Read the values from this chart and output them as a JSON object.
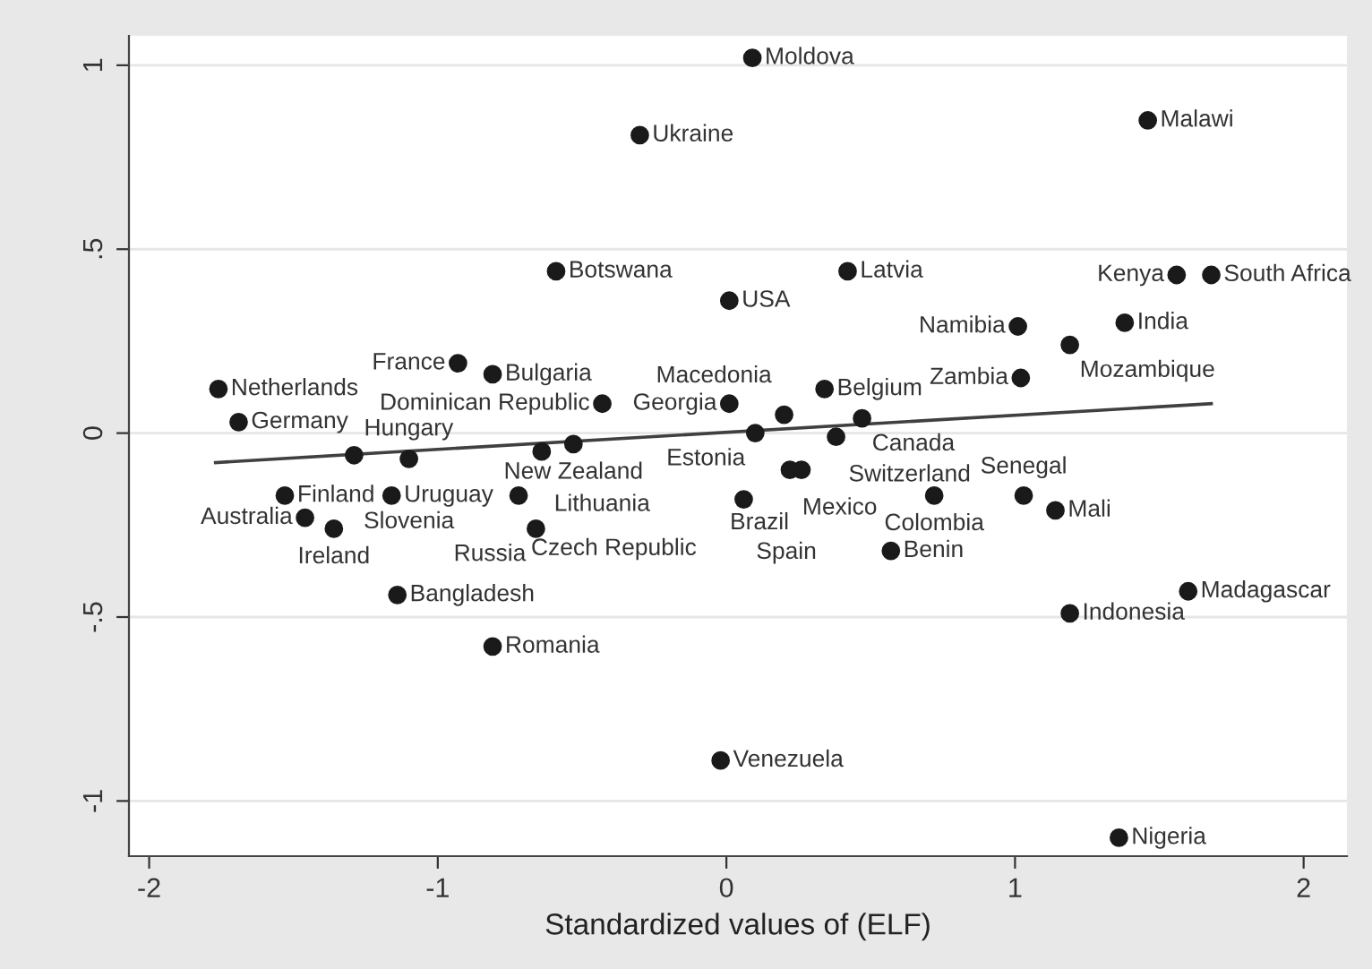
{
  "chart_data": {
    "type": "scatter",
    "xlabel": "Standardized values of (ELF)",
    "xlim": [
      -2.07,
      2.15
    ],
    "ylim": [
      -1.15,
      1.08
    ],
    "xticks": [
      {
        "value": -2,
        "label": "-2"
      },
      {
        "value": -1,
        "label": "-1"
      },
      0,
      1,
      2
    ],
    "yticks": [
      {
        "value": -1,
        "label": "-1"
      },
      {
        "value": -0.5,
        "label": "-.5"
      },
      0,
      {
        "value": 0.5,
        "label": ".5"
      },
      1
    ],
    "grid": "y",
    "series": [
      {
        "marker": "circle",
        "color": "#1a1a1a",
        "x": [
          0.09,
          -0.3,
          1.46,
          -0.59,
          0.01,
          0.42,
          1.56,
          1.68,
          1.38,
          1.01,
          1.19,
          1.02,
          -0.93,
          -0.81,
          -1.76,
          -1.69,
          -0.43,
          0.01,
          0.2,
          0.34,
          0.47,
          0.1,
          0.38,
          0.22,
          0.26,
          0.06,
          -0.53,
          -0.64,
          -1.29,
          -1.1,
          -1.53,
          -1.16,
          -0.72,
          -1.46,
          -1.36,
          -0.66,
          0.72,
          1.03,
          1.14,
          0.57,
          1.6,
          1.19,
          -1.14,
          -0.81,
          -0.02,
          1.36
        ],
        "values": [
          1.02,
          0.81,
          0.85,
          0.44,
          0.36,
          0.44,
          0.43,
          0.43,
          0.3,
          0.29,
          0.24,
          0.15,
          0.19,
          0.16,
          0.12,
          0.03,
          0.08,
          0.08,
          0.05,
          0.12,
          0.04,
          0.0,
          -0.01,
          -0.1,
          -0.1,
          -0.18,
          -0.03,
          -0.05,
          -0.06,
          -0.07,
          -0.17,
          -0.17,
          -0.17,
          -0.23,
          -0.26,
          -0.26,
          -0.17,
          -0.17,
          -0.21,
          -0.32,
          -0.43,
          -0.49,
          -0.44,
          -0.58,
          -0.89,
          -1.1
        ]
      },
      {
        "type": "line",
        "color": "#404040",
        "x": [
          -1.77,
          1.68
        ],
        "values": [
          -0.08,
          0.08
        ]
      }
    ],
    "annotations": [
      {
        "text": "Moldova",
        "x": 0.09,
        "y": 1.02
      },
      {
        "text": "Ukraine",
        "x": -0.3,
        "y": 0.81
      },
      {
        "text": "Malawi",
        "x": 1.46,
        "y": 0.85
      },
      {
        "text": "Botswana",
        "x": -0.59,
        "y": 0.44
      },
      {
        "text": "USA",
        "x": 0.01,
        "y": 0.36
      },
      {
        "text": "Latvia",
        "x": 0.42,
        "y": 0.44
      },
      {
        "text": "Kenya",
        "x": 1.56,
        "y": 0.43
      },
      {
        "text": "South Africa",
        "x": 1.68,
        "y": 0.43
      },
      {
        "text": "India",
        "x": 1.38,
        "y": 0.3
      },
      {
        "text": "Namibia",
        "x": 1.01,
        "y": 0.29
      },
      {
        "text": "Mozambique",
        "x": 1.19,
        "y": 0.24
      },
      {
        "text": "Zambia",
        "x": 1.02,
        "y": 0.15
      },
      {
        "text": "France",
        "x": -0.93,
        "y": 0.19
      },
      {
        "text": "Bulgaria",
        "x": -0.81,
        "y": 0.16
      },
      {
        "text": "Netherlands",
        "x": -1.76,
        "y": 0.12
      },
      {
        "text": "Germany",
        "x": -1.69,
        "y": 0.03
      },
      {
        "text": "Dominican Republic",
        "x": -0.43,
        "y": 0.08
      },
      {
        "text": "Georgia",
        "x": 0.01,
        "y": 0.08
      },
      {
        "text": "Macedonia",
        "x": 0.2,
        "y": 0.05
      },
      {
        "text": "Belgium",
        "x": 0.34,
        "y": 0.12
      },
      {
        "text": "Canada",
        "x": 0.47,
        "y": 0.04
      },
      {
        "text": "Estonia",
        "x": 0.1,
        "y": 0.0
      },
      {
        "text": "Switzerland",
        "x": 0.38,
        "y": -0.01
      },
      {
        "text": "Mexico",
        "x": 0.22,
        "y": -0.1
      },
      {
        "text": "Brazil",
        "x": 0.26,
        "y": -0.1
      },
      {
        "text": "Spain",
        "x": 0.06,
        "y": -0.18
      },
      {
        "text": "New Zealand",
        "x": -0.53,
        "y": -0.03
      },
      {
        "text": "Lithuania",
        "x": -0.64,
        "y": -0.05
      },
      {
        "text": "Hungary",
        "x": -1.29,
        "y": -0.06
      },
      {
        "text": "Slovenia",
        "x": -1.1,
        "y": -0.07
      },
      {
        "text": "Finland",
        "x": -1.53,
        "y": -0.17
      },
      {
        "text": "Uruguay",
        "x": -1.16,
        "y": -0.17
      },
      {
        "text": "Czech Republic",
        "x": -0.72,
        "y": -0.17
      },
      {
        "text": "Australia",
        "x": -1.46,
        "y": -0.23
      },
      {
        "text": "Ireland",
        "x": -1.36,
        "y": -0.26
      },
      {
        "text": "Russia",
        "x": -0.66,
        "y": -0.26
      },
      {
        "text": "Colombia",
        "x": 0.72,
        "y": -0.17
      },
      {
        "text": "Senegal",
        "x": 1.03,
        "y": -0.17
      },
      {
        "text": "Mali",
        "x": 1.14,
        "y": -0.21
      },
      {
        "text": "Benin",
        "x": 0.57,
        "y": -0.32
      },
      {
        "text": "Madagascar",
        "x": 1.6,
        "y": -0.43
      },
      {
        "text": "Indonesia",
        "x": 1.19,
        "y": -0.49
      },
      {
        "text": "Bangladesh",
        "x": -1.14,
        "y": -0.44
      },
      {
        "text": "Romania",
        "x": -0.81,
        "y": -0.58
      },
      {
        "text": "Venezuela",
        "x": -0.02,
        "y": -0.89
      },
      {
        "text": "Nigeria",
        "x": 1.36,
        "y": -1.1
      }
    ]
  }
}
